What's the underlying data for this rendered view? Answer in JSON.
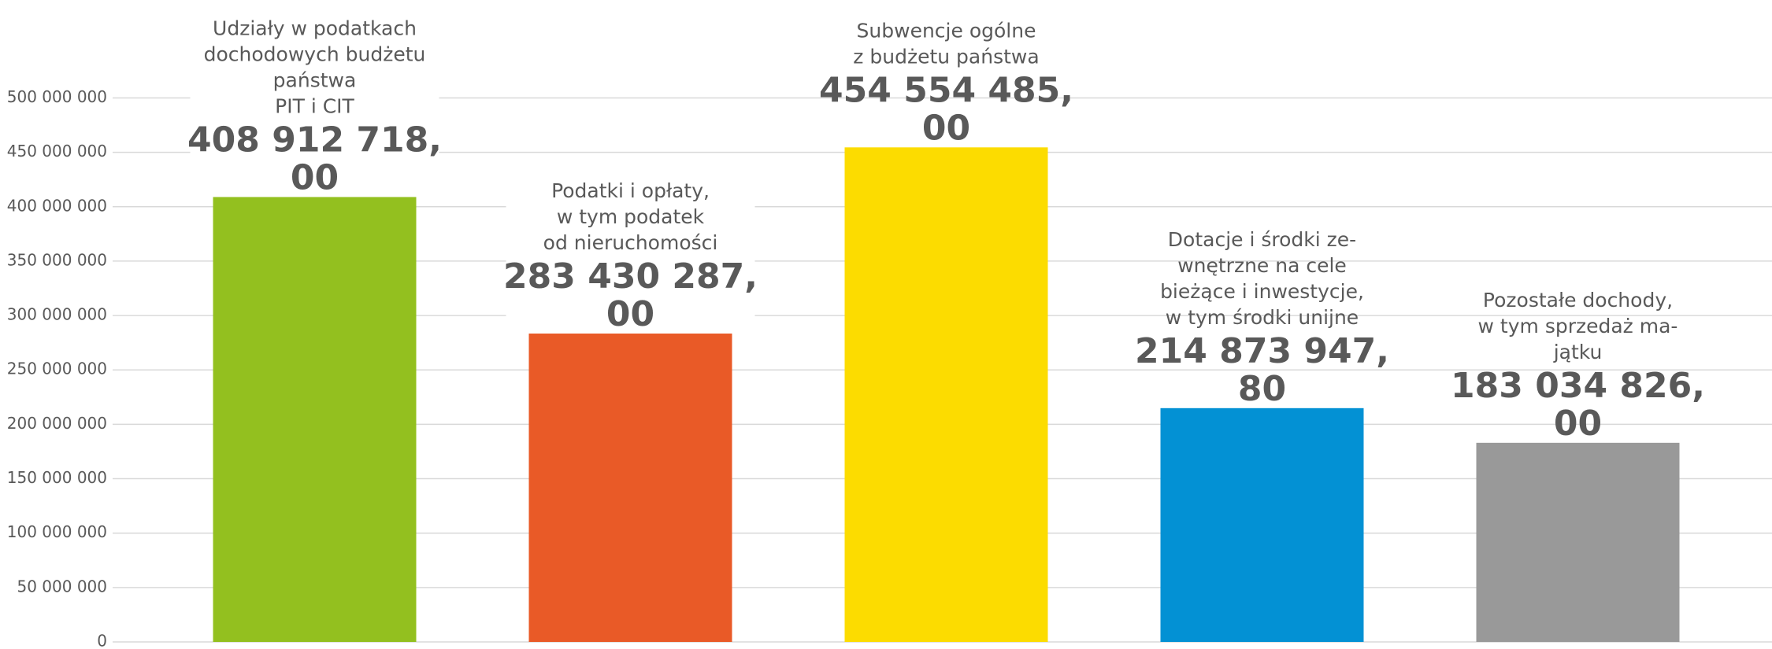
{
  "chart_data": {
    "type": "bar",
    "categories": [
      [
        "Udziały w podatkach",
        "dochodowych budżetu",
        "państwa",
        "PIT i CIT"
      ],
      [
        "Podatki i opłaty,",
        "w tym podatek",
        "od nieruchomości"
      ],
      [
        "Subwencje  ogólne",
        "z budżetu państwa"
      ],
      [
        "Dotacje i środki ze-",
        "wnętrzne  na cele",
        "bieżące  i inwestycje,",
        "w tym środki unijne"
      ],
      [
        "Pozostałe dochody,",
        "w tym sprzedaż ma-",
        "jątku"
      ]
    ],
    "values": [
      408912718.0,
      283430287.0,
      454554485.0,
      214873947.8,
      183034826.0
    ],
    "value_labels": [
      [
        "408 912 718,",
        "00"
      ],
      [
        "283 430 287,",
        "00"
      ],
      [
        "454 554 485,",
        "00"
      ],
      [
        "214 873 947,",
        "80"
      ],
      [
        "183 034 826,",
        "00"
      ]
    ],
    "colors": [
      "#93c01f",
      "#e95a27",
      "#fcdc00",
      "#0391d4",
      "#999999"
    ],
    "ylim": [
      0,
      590000000
    ],
    "yticks": [
      {
        "value": 0,
        "label": "0"
      },
      {
        "value": 50000000,
        "label": "50 000 000"
      },
      {
        "value": 100000000,
        "label": "100 000 000"
      },
      {
        "value": 150000000,
        "label": "150 000 000"
      },
      {
        "value": 200000000,
        "label": "200 000 000"
      },
      {
        "value": 250000000,
        "label": "250 000 000"
      },
      {
        "value": 300000000,
        "label": "300 000 000"
      },
      {
        "value": 350000000,
        "label": "350 000 000"
      },
      {
        "value": 400000000,
        "label": "400 000 000"
      },
      {
        "value": 450000000,
        "label": "450 000 000"
      },
      {
        "value": 500000000,
        "label": "500 000 000"
      }
    ],
    "grid": true
  }
}
